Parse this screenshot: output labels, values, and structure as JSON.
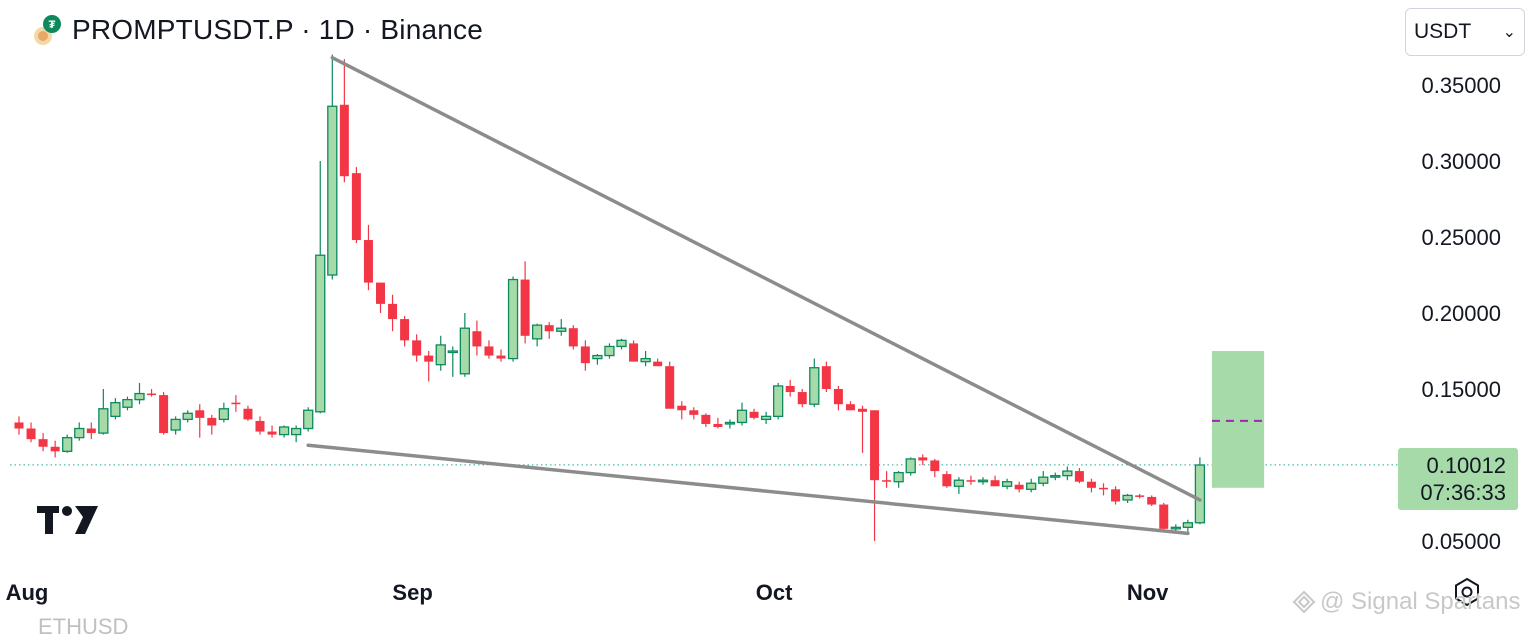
{
  "header": {
    "title": "PROMPTUSDT.P · 1D · Binance"
  },
  "currency_select": {
    "value": "USDT"
  },
  "price_label": {
    "price": "0.10012",
    "countdown": "07:36:33"
  },
  "watermark": {
    "text": "@ Signal Spartans"
  },
  "bottom_cut_text": "ETHUSD",
  "colors": {
    "up_fill": "#a6dba9",
    "up_border": "#0b8a5e",
    "down": "#f23645",
    "trendline": "#8c8c8c",
    "target_box": "#a6dba9",
    "target_dash": "#9c27b0",
    "current_price_line": "#26a69a"
  },
  "icons": [
    "coin-logo-icon",
    "tradingview-logo-icon",
    "settings-icon",
    "chevron-down-icon"
  ],
  "chart_data": {
    "type": "candlestick",
    "interval": "1D",
    "y_axis_ticks": [
      "0.35000",
      "0.30000",
      "0.25000",
      "0.20000",
      "0.15000",
      "0.05000"
    ],
    "x_axis_ticks": [
      {
        "label": "Aug",
        "index": 0
      },
      {
        "label": "Sep",
        "index": 32
      },
      {
        "label": "Oct",
        "index": 62
      },
      {
        "label": "Nov",
        "index": 93
      }
    ],
    "ylim": [
      0.03,
      0.38
    ],
    "current_price": 0.10012,
    "candles": [
      [
        0.128,
        0.132,
        0.12,
        0.124
      ],
      [
        0.124,
        0.128,
        0.115,
        0.117
      ],
      [
        0.117,
        0.121,
        0.109,
        0.112
      ],
      [
        0.112,
        0.116,
        0.105,
        0.109
      ],
      [
        0.109,
        0.12,
        0.108,
        0.118
      ],
      [
        0.118,
        0.128,
        0.116,
        0.124
      ],
      [
        0.124,
        0.128,
        0.117,
        0.121
      ],
      [
        0.121,
        0.15,
        0.12,
        0.137
      ],
      [
        0.132,
        0.144,
        0.13,
        0.141
      ],
      [
        0.138,
        0.145,
        0.136,
        0.143
      ],
      [
        0.143,
        0.154,
        0.14,
        0.147
      ],
      [
        0.147,
        0.15,
        0.145,
        0.146
      ],
      [
        0.146,
        0.148,
        0.12,
        0.121
      ],
      [
        0.123,
        0.132,
        0.12,
        0.13
      ],
      [
        0.13,
        0.136,
        0.128,
        0.134
      ],
      [
        0.136,
        0.14,
        0.118,
        0.131
      ],
      [
        0.131,
        0.133,
        0.12,
        0.126
      ],
      [
        0.13,
        0.141,
        0.128,
        0.137
      ],
      [
        0.141,
        0.146,
        0.135,
        0.14
      ],
      [
        0.137,
        0.139,
        0.129,
        0.13
      ],
      [
        0.129,
        0.132,
        0.12,
        0.122
      ],
      [
        0.122,
        0.126,
        0.118,
        0.12
      ],
      [
        0.12,
        0.126,
        0.118,
        0.125
      ],
      [
        0.12,
        0.126,
        0.115,
        0.124
      ],
      [
        0.124,
        0.138,
        0.122,
        0.136
      ],
      [
        0.135,
        0.3,
        0.134,
        0.238
      ],
      [
        0.225,
        0.37,
        0.222,
        0.336
      ],
      [
        0.337,
        0.367,
        0.286,
        0.29
      ],
      [
        0.292,
        0.296,
        0.246,
        0.248
      ],
      [
        0.248,
        0.258,
        0.215,
        0.22
      ],
      [
        0.22,
        0.22,
        0.2,
        0.206
      ],
      [
        0.206,
        0.212,
        0.188,
        0.196
      ],
      [
        0.196,
        0.198,
        0.178,
        0.182
      ],
      [
        0.182,
        0.186,
        0.168,
        0.172
      ],
      [
        0.172,
        0.175,
        0.155,
        0.168
      ],
      [
        0.166,
        0.185,
        0.162,
        0.179
      ],
      [
        0.174,
        0.178,
        0.158,
        0.175
      ],
      [
        0.16,
        0.2,
        0.158,
        0.19
      ],
      [
        0.188,
        0.195,
        0.172,
        0.178
      ],
      [
        0.178,
        0.182,
        0.17,
        0.172
      ],
      [
        0.172,
        0.176,
        0.168,
        0.17
      ],
      [
        0.17,
        0.224,
        0.168,
        0.222
      ],
      [
        0.222,
        0.234,
        0.18,
        0.185
      ],
      [
        0.183,
        0.193,
        0.178,
        0.192
      ],
      [
        0.192,
        0.194,
        0.183,
        0.188
      ],
      [
        0.188,
        0.196,
        0.185,
        0.19
      ],
      [
        0.19,
        0.192,
        0.176,
        0.178
      ],
      [
        0.178,
        0.182,
        0.162,
        0.167
      ],
      [
        0.17,
        0.173,
        0.166,
        0.172
      ],
      [
        0.172,
        0.18,
        0.17,
        0.178
      ],
      [
        0.178,
        0.183,
        0.176,
        0.182
      ],
      [
        0.18,
        0.182,
        0.168,
        0.168
      ],
      [
        0.168,
        0.175,
        0.165,
        0.17
      ],
      [
        0.168,
        0.17,
        0.165,
        0.165
      ],
      [
        0.165,
        0.168,
        0.138,
        0.137
      ],
      [
        0.139,
        0.142,
        0.13,
        0.136
      ],
      [
        0.136,
        0.138,
        0.13,
        0.133
      ],
      [
        0.133,
        0.134,
        0.125,
        0.127
      ],
      [
        0.127,
        0.131,
        0.124,
        0.125
      ],
      [
        0.127,
        0.13,
        0.124,
        0.128
      ],
      [
        0.128,
        0.141,
        0.126,
        0.136
      ],
      [
        0.135,
        0.137,
        0.13,
        0.131
      ],
      [
        0.13,
        0.135,
        0.127,
        0.132
      ],
      [
        0.132,
        0.154,
        0.13,
        0.152
      ],
      [
        0.152,
        0.156,
        0.145,
        0.148
      ],
      [
        0.148,
        0.15,
        0.138,
        0.14
      ],
      [
        0.14,
        0.17,
        0.138,
        0.164
      ],
      [
        0.165,
        0.168,
        0.148,
        0.15
      ],
      [
        0.15,
        0.152,
        0.136,
        0.14
      ],
      [
        0.14,
        0.142,
        0.136,
        0.136
      ],
      [
        0.137,
        0.139,
        0.108,
        0.135
      ],
      [
        0.136,
        0.136,
        0.05,
        0.09
      ],
      [
        0.09,
        0.096,
        0.085,
        0.089
      ],
      [
        0.089,
        0.096,
        0.085,
        0.095
      ],
      [
        0.095,
        0.105,
        0.093,
        0.104
      ],
      [
        0.105,
        0.107,
        0.1,
        0.103
      ],
      [
        0.103,
        0.104,
        0.092,
        0.096
      ],
      [
        0.094,
        0.096,
        0.085,
        0.086
      ],
      [
        0.086,
        0.092,
        0.081,
        0.09
      ],
      [
        0.09,
        0.093,
        0.087,
        0.089
      ],
      [
        0.089,
        0.092,
        0.087,
        0.09
      ],
      [
        0.09,
        0.093,
        0.086,
        0.086
      ],
      [
        0.086,
        0.091,
        0.084,
        0.089
      ],
      [
        0.087,
        0.089,
        0.082,
        0.084
      ],
      [
        0.084,
        0.091,
        0.082,
        0.088
      ],
      [
        0.088,
        0.096,
        0.086,
        0.092
      ],
      [
        0.092,
        0.095,
        0.09,
        0.093
      ],
      [
        0.093,
        0.099,
        0.09,
        0.096
      ],
      [
        0.096,
        0.098,
        0.088,
        0.089
      ],
      [
        0.089,
        0.091,
        0.082,
        0.085
      ],
      [
        0.085,
        0.088,
        0.08,
        0.084
      ],
      [
        0.084,
        0.086,
        0.074,
        0.076
      ],
      [
        0.077,
        0.081,
        0.075,
        0.08
      ],
      [
        0.08,
        0.081,
        0.078,
        0.079
      ],
      [
        0.079,
        0.08,
        0.073,
        0.074
      ],
      [
        0.074,
        0.075,
        0.057,
        0.058
      ],
      [
        0.058,
        0.061,
        0.056,
        0.059
      ],
      [
        0.059,
        0.064,
        0.055,
        0.062
      ],
      [
        0.062,
        0.105,
        0.061,
        0.1
      ]
    ],
    "annotations": {
      "falling_wedge_upper": [
        [
          26,
          0.368
        ],
        [
          98,
          0.077
        ]
      ],
      "falling_wedge_lower": [
        [
          24,
          0.113
        ],
        [
          97,
          0.055
        ]
      ],
      "target_box": {
        "from_index": 99,
        "to_index": 103,
        "low": 0.085,
        "high": 0.175,
        "dashed_level": 0.129
      }
    }
  }
}
